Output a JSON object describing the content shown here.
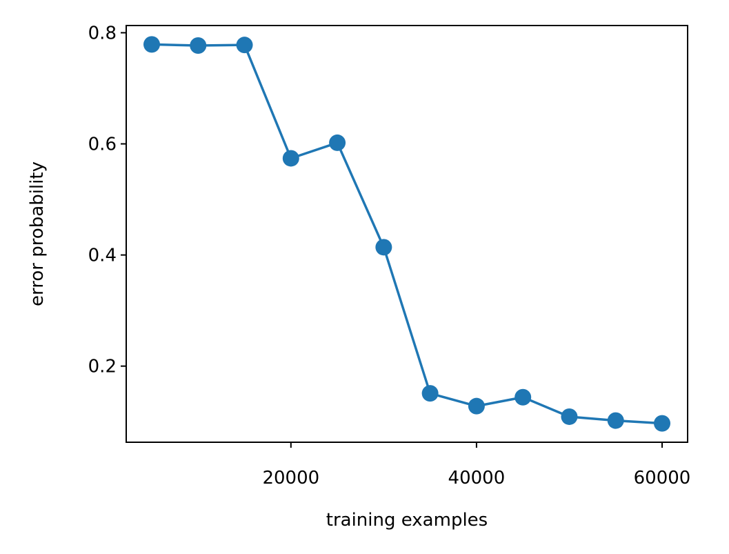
{
  "chart_data": {
    "type": "line",
    "x_label": "training examples",
    "y_label": "error probability",
    "x": [
      5000,
      10000,
      15000,
      20000,
      25000,
      30000,
      35000,
      40000,
      45000,
      50000,
      55000,
      60000
    ],
    "values": [
      0.779,
      0.777,
      0.778,
      0.574,
      0.602,
      0.414,
      0.151,
      0.128,
      0.144,
      0.109,
      0.102,
      0.097
    ],
    "color": "#1f77b4",
    "markers": true,
    "xlim": [
      2250,
      62750
    ],
    "xticks": [
      20000,
      40000,
      60000
    ],
    "ylim": [
      0.063,
      0.813
    ],
    "yticks": [
      0.2,
      0.4,
      0.6,
      0.8
    ],
    "grid": false
  }
}
